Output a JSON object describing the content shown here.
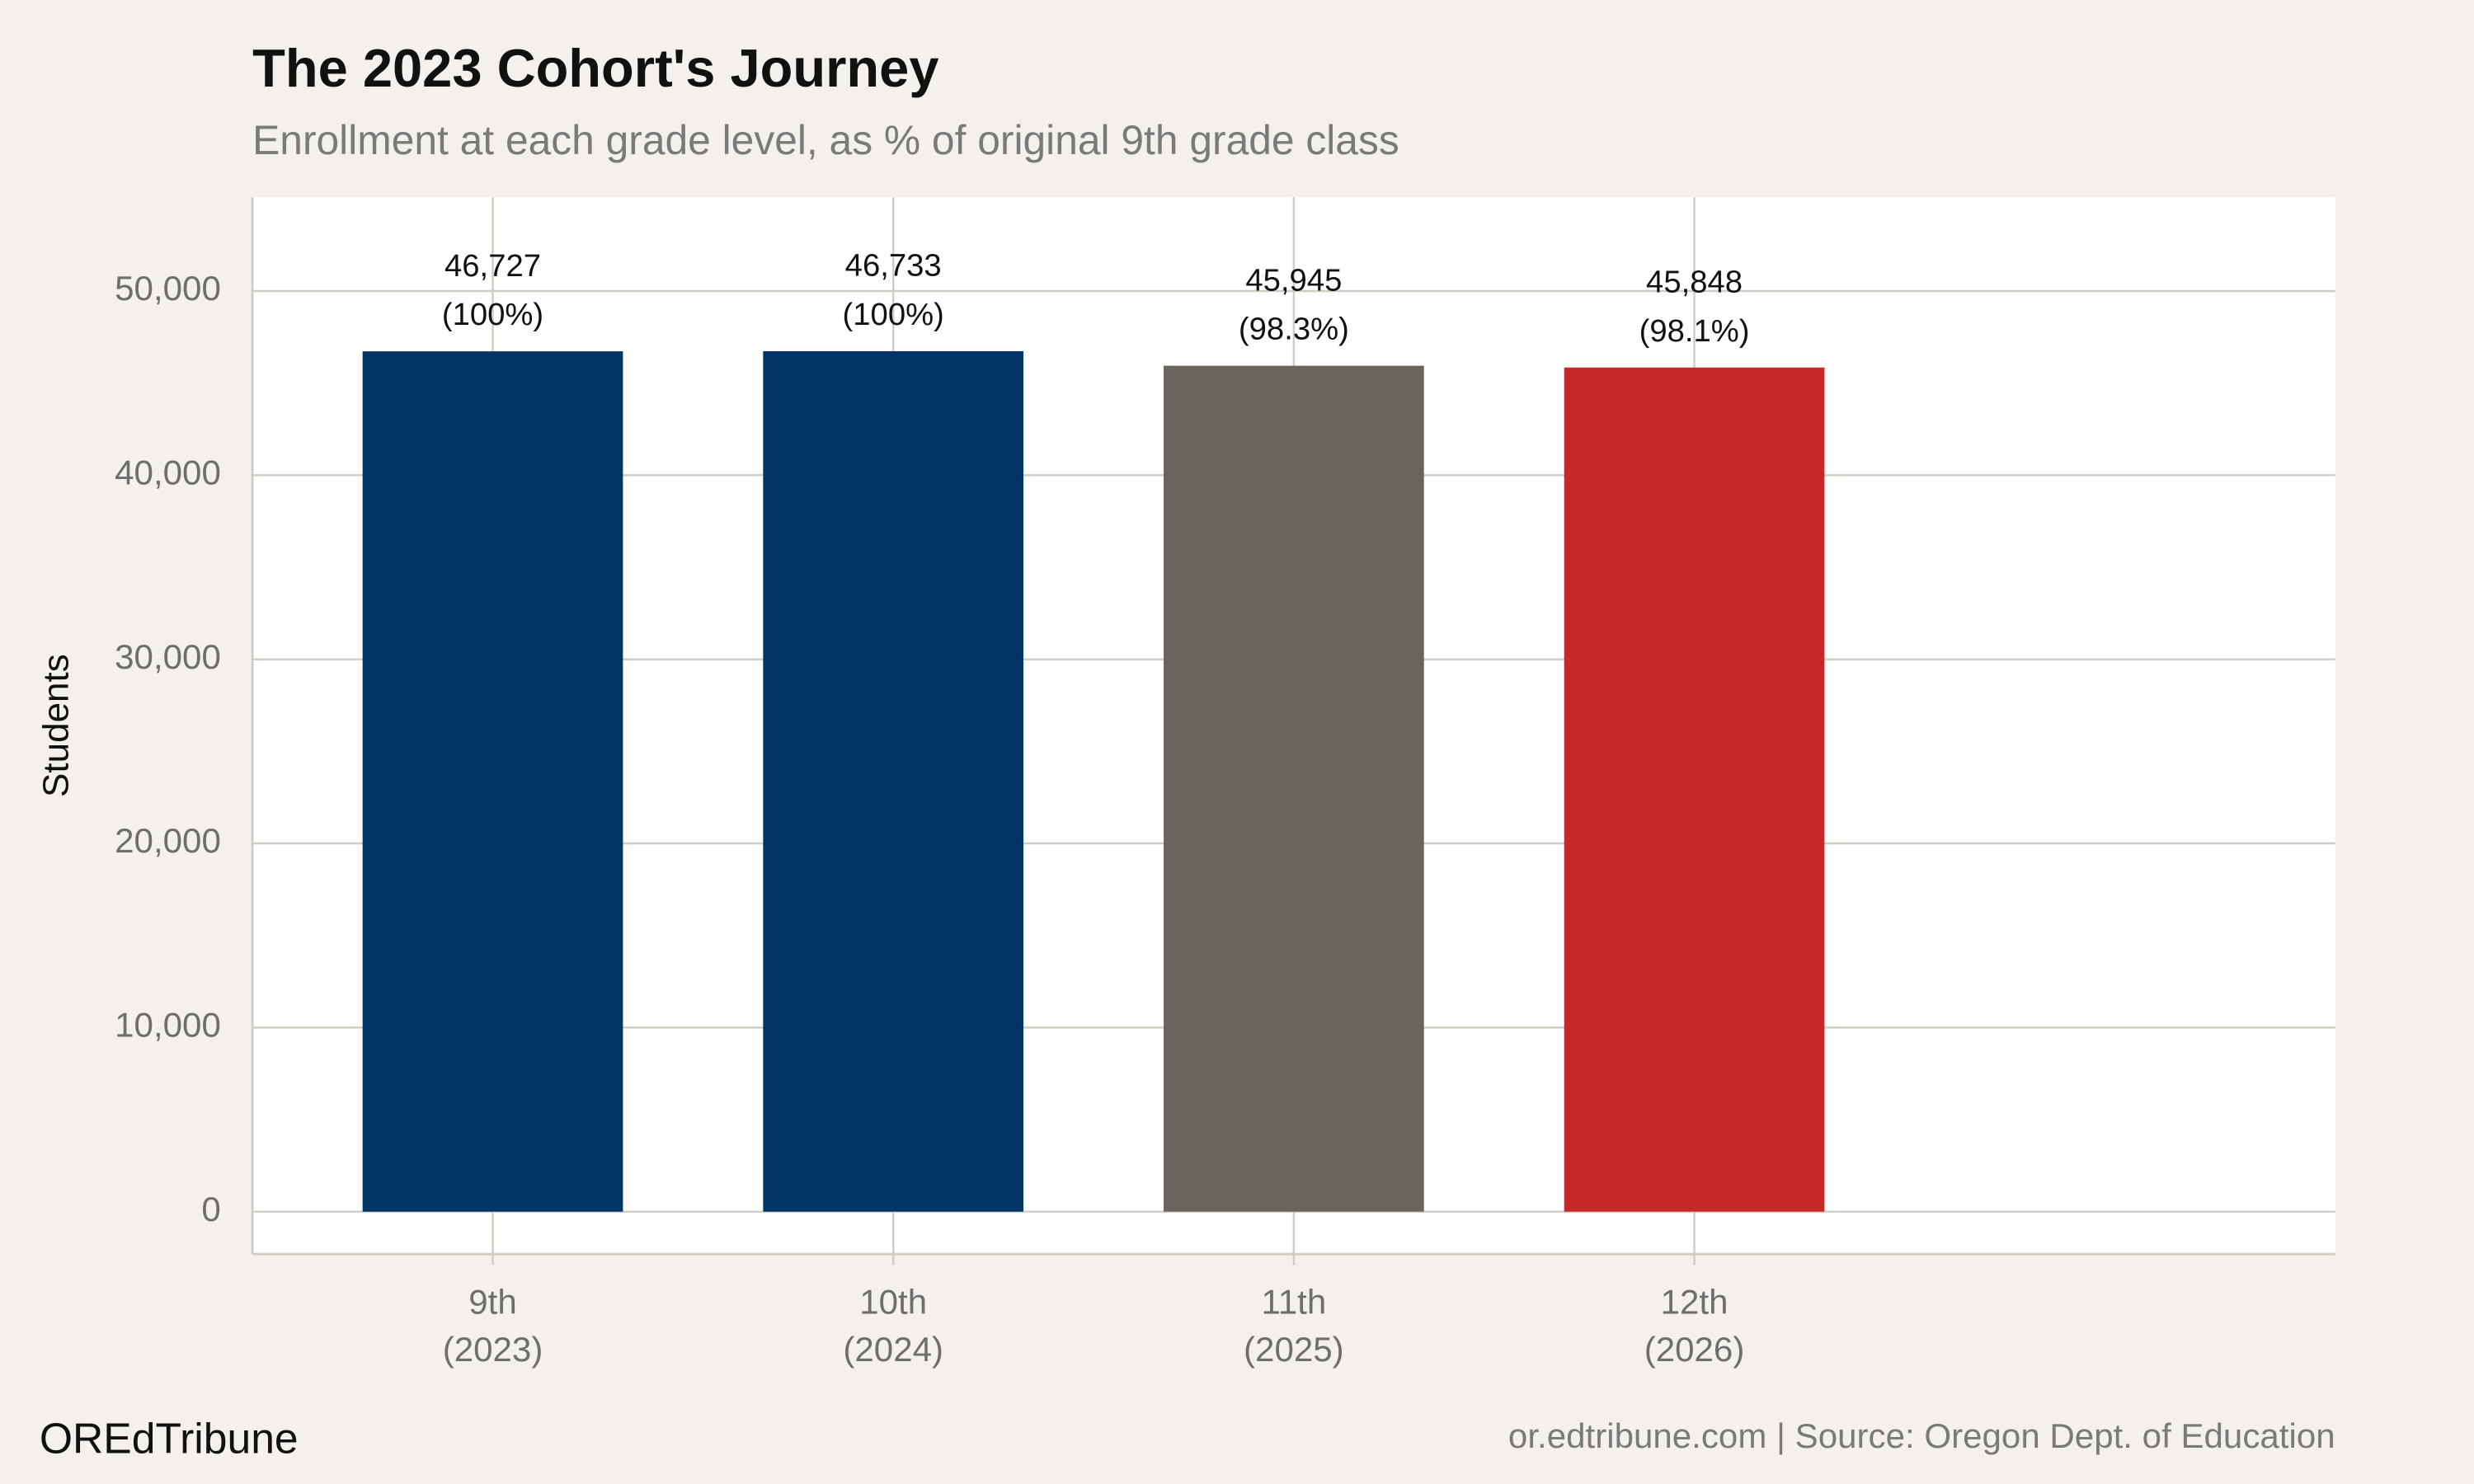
{
  "chart_data": {
    "type": "bar",
    "title": "The 2023 Cohort's Journey",
    "subtitle": "Enrollment at each grade level, as % of original 9th grade class",
    "y_label": "Students",
    "categories": [
      [
        "9th",
        "(2023)"
      ],
      [
        "10th",
        "(2024)"
      ],
      [
        "11th",
        "(2025)"
      ],
      [
        "12th",
        "(2026)"
      ]
    ],
    "values": [
      46727,
      46733,
      45945,
      45848
    ],
    "value_labels": [
      [
        "46,727",
        "(100%)"
      ],
      [
        "46,733",
        "(100%)"
      ],
      [
        "45,945",
        "(98.3%)"
      ],
      [
        "45,848",
        "(98.1%)"
      ]
    ],
    "colors": [
      "#003366",
      "#003366",
      "#69655e",
      "#c62828"
    ],
    "ylim": [
      -2300,
      55100
    ],
    "yticks": [
      0,
      {
        "value": 10000,
        "label": "10,000"
      },
      {
        "value": 20000,
        "label": "20,000"
      },
      {
        "value": 30000,
        "label": "30,000"
      },
      {
        "value": 40000,
        "label": "40,000"
      },
      {
        "value": 50000,
        "label": "50,000"
      }
    ],
    "grid": true,
    "brand": "OREdTribune",
    "source": "or.edtribune.com | Source: Oregon Dept. of Education"
  }
}
